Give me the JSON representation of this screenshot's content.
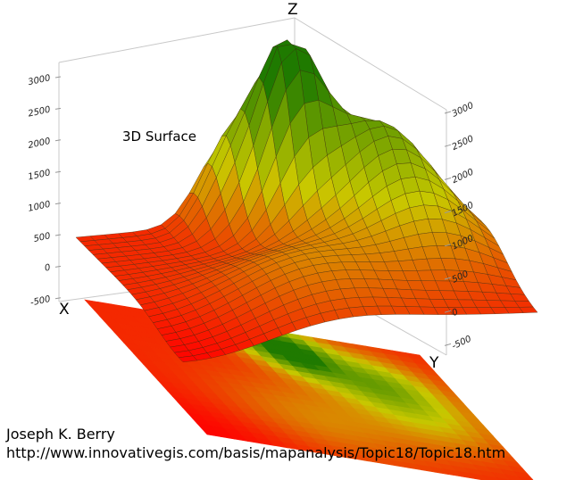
{
  "chart_data": {
    "type": "surface3d",
    "title": "3D Surface",
    "axes": {
      "x_label": "X",
      "y_label": "Y",
      "z_label": "Z"
    },
    "z_range": [
      -500,
      3000
    ],
    "z_ticks_left": [
      "3000",
      "2500",
      "2000",
      "1500",
      "1000",
      "500",
      "0",
      "-500"
    ],
    "z_ticks_right": [
      "3000",
      "2500",
      "2000",
      "1500",
      "1000",
      "500",
      "0",
      "-500"
    ],
    "color_scale": {
      "low": "#ff0000",
      "mid": "#c8c800",
      "high": "#1f7a00"
    },
    "grid_resolution": 25,
    "projection_plane": true
  },
  "credits": {
    "author": "Joseph K. Berry",
    "url": "http://www.innovativegis.com/basis/mapanalysis/Topic18/Topic18.htm"
  }
}
